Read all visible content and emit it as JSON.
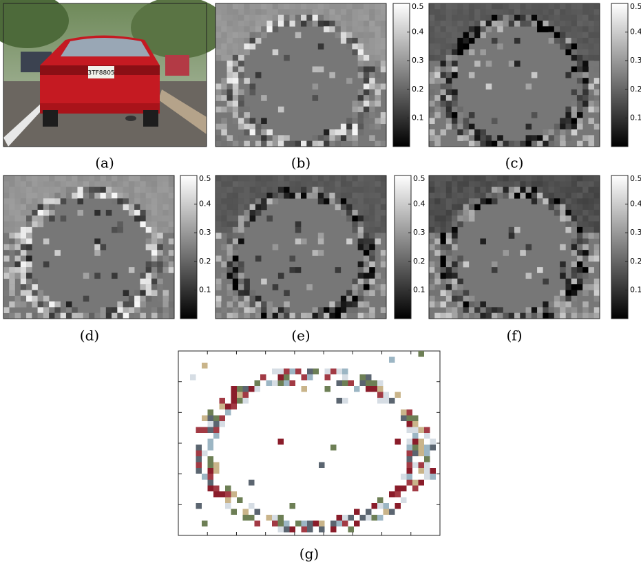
{
  "panels": {
    "labels": [
      "(a)",
      "(b)",
      "(c)",
      "(d)",
      "(e)",
      "(f)",
      "(g)"
    ]
  },
  "colorbar": {
    "lim": [
      0,
      0.5
    ],
    "ticks": [
      0.1,
      0.2,
      0.3,
      0.4,
      0.5
    ]
  },
  "photo": {
    "plate": "3TF8805"
  }
}
